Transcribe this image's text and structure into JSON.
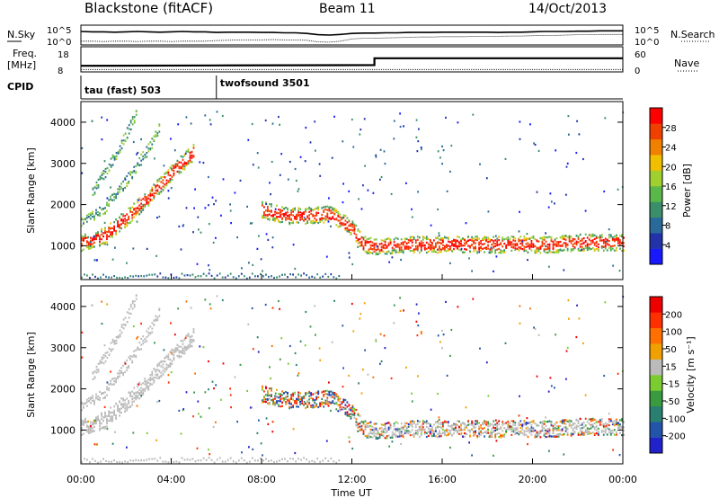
{
  "header": {
    "station": "Blackstone (fitACF)",
    "beam": "Beam 11",
    "date": "14/Oct/2013"
  },
  "chart_data": [
    {
      "type": "line",
      "panel": "noise",
      "left_label": "N.Sky",
      "right_label": "N.Search",
      "left_ticks": [
        "10^5",
        "10^0"
      ],
      "right_ticks": [
        "10^5",
        "10^0"
      ],
      "x_hours": [
        0,
        0.5,
        1,
        1.5,
        2,
        2.5,
        3,
        3.5,
        4,
        4.5,
        5,
        5.5,
        6,
        6.5,
        7,
        7.5,
        8,
        8.5,
        9,
        9.5,
        10,
        10.5,
        11,
        11.5,
        12,
        12.5,
        13,
        13.5,
        14,
        14.5,
        15,
        15.5,
        16,
        16.5,
        17,
        17.5,
        18,
        18.5,
        19,
        19.5,
        20,
        20.5,
        21,
        21.5,
        22,
        22.5,
        23,
        23.5,
        24
      ],
      "sky_log10": [
        3.6,
        3.5,
        3.5,
        3.4,
        3.5,
        3.6,
        3.5,
        3.4,
        3.5,
        3.6,
        3.5,
        3.5,
        3.3,
        3.4,
        3.4,
        3.4,
        3.3,
        3.3,
        3.2,
        3.2,
        3.0,
        2.6,
        2.5,
        2.7,
        3.0,
        3.1,
        3.1,
        3.2,
        3.2,
        3.3,
        3.3,
        3.3,
        3.4,
        3.4,
        3.4,
        3.4,
        3.4,
        3.3,
        3.4,
        3.4,
        3.5,
        3.6,
        3.6,
        3.6,
        3.7,
        3.7,
        3.8,
        3.8,
        3.8
      ],
      "search_log10": [
        0.6,
        0.6,
        0.5,
        0.6,
        0.6,
        0.5,
        0.6,
        0.6,
        0.5,
        0.6,
        0.6,
        0.6,
        0.8,
        0.9,
        1.0,
        1.0,
        1.0,
        1.1,
        1.0,
        1.0,
        0.9,
        0.4,
        0.3,
        0.6,
        1.3,
        1.5,
        1.5,
        1.6,
        1.7,
        1.8,
        1.9,
        1.9,
        2.0,
        2.0,
        2.0,
        2.1,
        2.1,
        2.1,
        2.2,
        2.2,
        2.3,
        2.4,
        2.4,
        2.5,
        2.6,
        2.6,
        2.7,
        2.7,
        2.7
      ]
    },
    {
      "type": "line",
      "panel": "frequency",
      "left_label": "Freq.",
      "left_unit": "[MHz]",
      "right_label": "Nave",
      "left_ticks": [
        "18",
        "8"
      ],
      "right_ticks": [
        "60",
        "0"
      ],
      "freq_x_hours": [
        0,
        6,
        13,
        13,
        24
      ],
      "freq_mhz": [
        10.4,
        10.6,
        10.8,
        14.6,
        14.6
      ],
      "nave_level": 2
    },
    {
      "type": "table",
      "panel": "cpid",
      "label": "CPID",
      "modes": [
        {
          "name": "tau (fast) 503",
          "start_hour": 0
        },
        {
          "name": "twofsound 3501",
          "start_hour": 6
        }
      ]
    },
    {
      "type": "heatmap",
      "panel": "power",
      "ylabel": "Slant Range [km]",
      "yticks": [
        1000,
        2000,
        3000,
        4000
      ],
      "ylim": [
        180,
        4500
      ],
      "colorbar": {
        "label": "Power [dB]",
        "ticks": [
          "4",
          "8",
          "12",
          "16",
          "20",
          "24",
          "28"
        ],
        "colors": [
          "#1919ff",
          "#2233aa",
          "#2a6a9a",
          "#3a8f6a",
          "#5ab84a",
          "#a0d030",
          "#f0c000",
          "#f08000",
          "#f04000",
          "#ff0000"
        ]
      }
    },
    {
      "type": "heatmap",
      "panel": "velocity",
      "ylabel": "Slant Range [km]",
      "yticks": [
        1000,
        2000,
        3000,
        4000
      ],
      "ylim": [
        180,
        4500
      ],
      "colorbar": {
        "label": "Velocity [m s⁻¹]",
        "ticks": [
          "200",
          "100",
          "50",
          "15",
          "-15",
          "-50",
          "-100",
          "-200"
        ],
        "colors": [
          "#2222cc",
          "#2255aa",
          "#2a8070",
          "#3a9a40",
          "#7acc30",
          "#bbbbbb",
          "#f0a000",
          "#ff7000",
          "#ff3000",
          "#ee0000"
        ]
      },
      "ground_scatter_color": "#bbbbbb"
    }
  ],
  "xaxis": {
    "ticks": [
      "00:00",
      "04:00",
      "08:00",
      "12:00",
      "16:00",
      "20:00",
      "00:00"
    ],
    "xlabel": "Time UT",
    "xlim_hours": [
      0,
      24
    ]
  },
  "echo_bands": [
    {
      "name": "main-echo",
      "hours": [
        0,
        1,
        2,
        3,
        4,
        5,
        6,
        7,
        8,
        9,
        10,
        11,
        12,
        12.5,
        13,
        14,
        15,
        16,
        17,
        18,
        19,
        20,
        21,
        22,
        23,
        24
      ],
      "range_km": [
        1100,
        1250,
        1700,
        2200,
        2800,
        3300,
        null,
        null,
        1900,
        1750,
        1750,
        1800,
        1450,
        1050,
        1000,
        1050,
        1050,
        1050,
        1050,
        1050,
        1050,
        1050,
        1050,
        1100,
        1100,
        1100
      ]
    },
    {
      "name": "second-hop",
      "hours": [
        0,
        1,
        2,
        3,
        3.5
      ],
      "range_km": [
        1600,
        1900,
        2600,
        3400,
        3900
      ]
    },
    {
      "name": "third-hop",
      "hours": [
        0.5,
        1.5,
        2.5
      ],
      "range_km": [
        2300,
        3200,
        4300
      ]
    }
  ]
}
